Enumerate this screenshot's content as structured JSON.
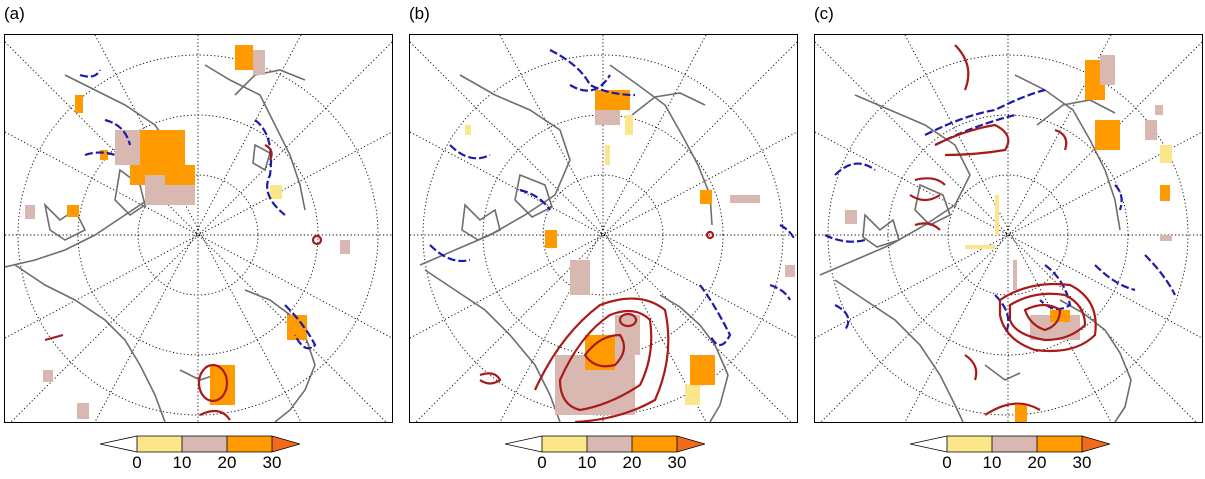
{
  "panels": [
    {
      "label": "(a)"
    },
    {
      "label": "(b)"
    },
    {
      "label": "(c)"
    }
  ],
  "colorbar": {
    "ticks": [
      "0",
      "10",
      "20",
      "30"
    ],
    "colors": [
      "#ffffff",
      "#fbe68a",
      "#d8b8b0",
      "#ff9a00",
      "#f26a1b"
    ]
  },
  "style": {
    "coastline": "#6e6e6e",
    "positive_contour": "#aa1a1a",
    "negative_contour": "#1c1ca8",
    "grid": "#000000"
  }
}
